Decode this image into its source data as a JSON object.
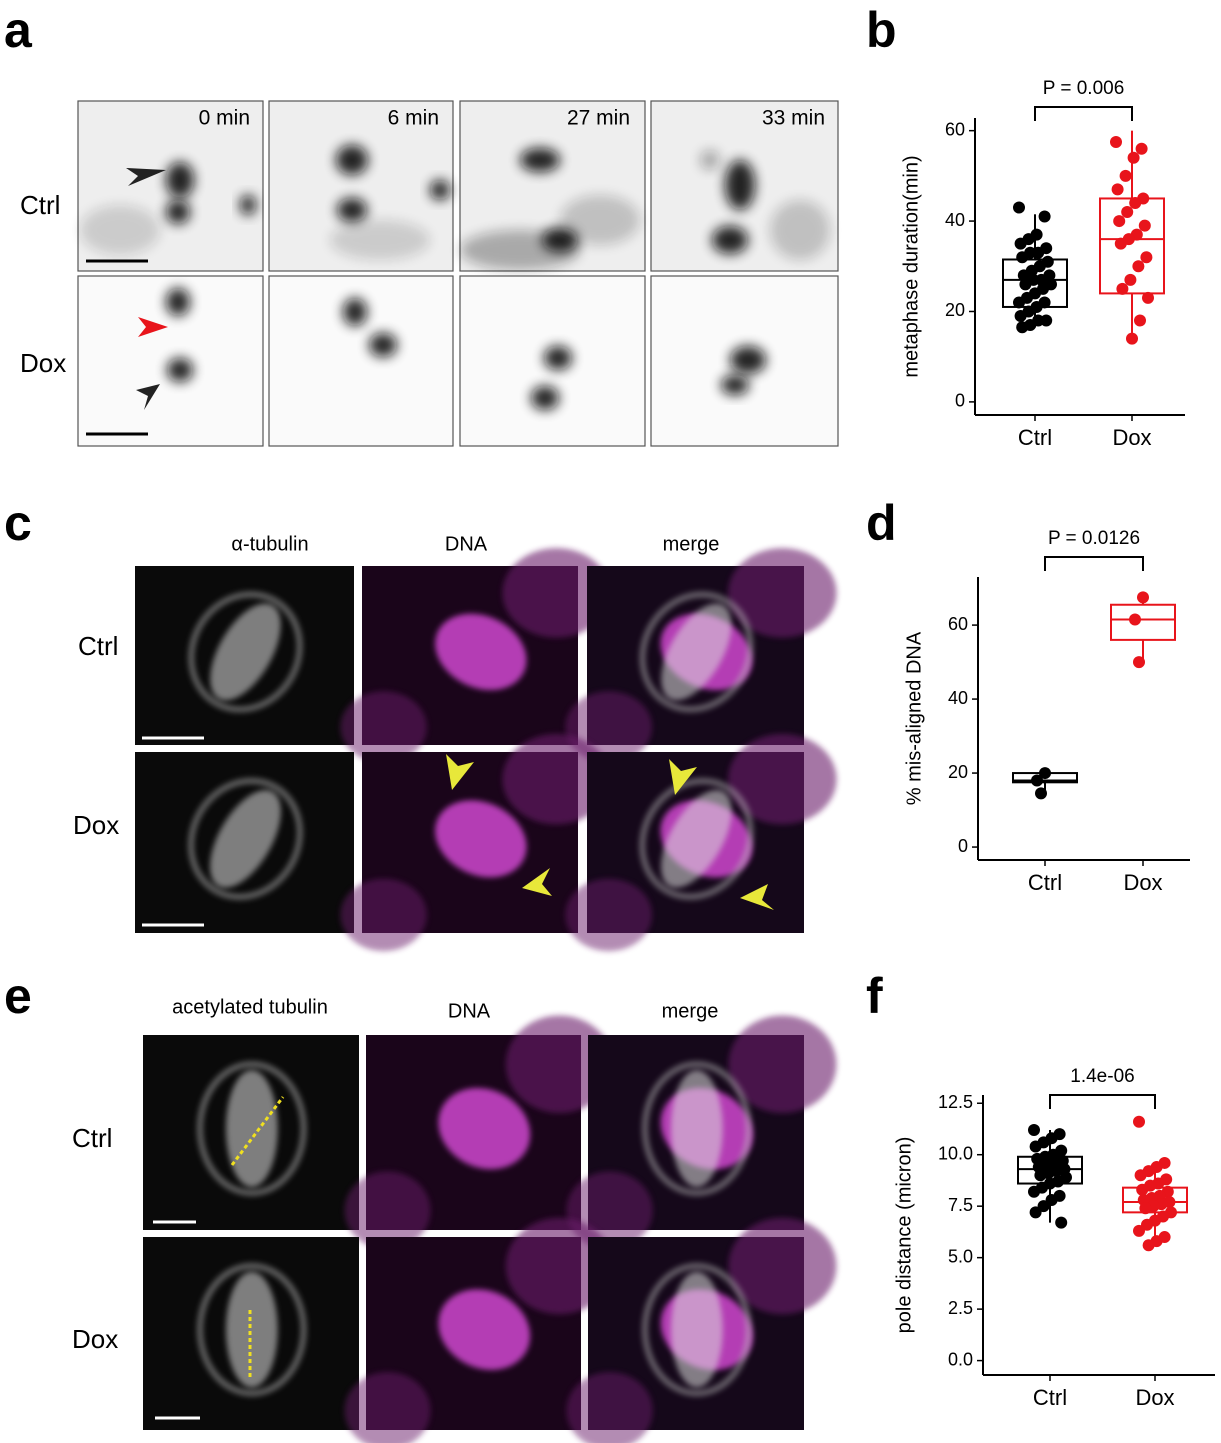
{
  "figure": {
    "panel_labels": [
      "a",
      "b",
      "c",
      "d",
      "e",
      "f"
    ],
    "panel_a": {
      "times": [
        "0 min",
        "6 min",
        "27 min",
        "33 min"
      ],
      "rows": [
        "Ctrl",
        "Dox"
      ]
    },
    "panel_c": {
      "columns": [
        "α-tubulin",
        "DNA",
        "merge"
      ],
      "rows": [
        "Ctrl",
        "Dox"
      ]
    },
    "panel_e": {
      "columns": [
        "acetylated tubulin",
        "DNA",
        "merge"
      ],
      "rows": [
        "Ctrl",
        "Dox"
      ]
    }
  },
  "chart_data": [
    {
      "type": "box",
      "ylabel": "metaphase duration(min)",
      "annotation": "P = 0.006",
      "categories": [
        "Ctrl",
        "Dox"
      ],
      "ylim": [
        -2.9,
        62.8
      ],
      "yticks": [
        0,
        20,
        40,
        60
      ],
      "boxes": [
        {
          "color": "#000000",
          "whisker_low": 16.5,
          "q1": 21,
          "median": 27,
          "q3": 31.5,
          "whisker_high": 41.5,
          "points": [
            43,
            41,
            37,
            36,
            35,
            34,
            33,
            33,
            32,
            31,
            30,
            29,
            28,
            28,
            27,
            27,
            26,
            26,
            25,
            24,
            23,
            22,
            22,
            21,
            20,
            19,
            18,
            18,
            17,
            16.5
          ]
        },
        {
          "color": "#e8141b",
          "whisker_low": 14,
          "q1": 24,
          "median": 36,
          "q3": 45,
          "whisker_high": 60,
          "points": [
            57.5,
            56,
            54,
            50,
            47,
            45,
            44,
            42,
            40,
            39,
            37,
            36,
            35,
            32,
            30,
            27,
            25,
            23,
            18,
            14
          ]
        }
      ]
    },
    {
      "type": "box",
      "ylabel": "% mis-aligned DNA",
      "annotation": "P = 0.0126",
      "categories": [
        "Ctrl",
        "Dox"
      ],
      "ylim": [
        -3.5,
        73
      ],
      "yticks": [
        0,
        20,
        40,
        60
      ],
      "boxes": [
        {
          "color": "#000000",
          "whisker_low": 14.5,
          "q1": 17.5,
          "median": 18,
          "q3": 20,
          "whisker_high": 20,
          "points": [
            20,
            18,
            14.5
          ]
        },
        {
          "color": "#e8141b",
          "whisker_low": 50,
          "q1": 56,
          "median": 61.5,
          "q3": 65.5,
          "whisker_high": 67.5,
          "points": [
            67.5,
            61.5,
            50
          ]
        }
      ]
    },
    {
      "type": "box",
      "ylabel": "pole distance (micron)",
      "annotation": "1.4e-06",
      "categories": [
        "Ctrl",
        "Dox"
      ],
      "ylim": [
        -0.7,
        12.9
      ],
      "yticks": [
        {
          "value": 0,
          "label": "0.0"
        },
        2.5,
        {
          "value": 5,
          "label": "5.0"
        },
        7.5,
        {
          "value": 10,
          "label": "10.0"
        },
        12.5
      ],
      "boxes": [
        {
          "color": "#000000",
          "whisker_low": 6.7,
          "q1": 8.6,
          "median": 9.3,
          "q3": 9.9,
          "whisker_high": 11.2,
          "points": [
            11.2,
            11.0,
            10.8,
            10.6,
            10.4,
            10.2,
            10.0,
            9.9,
            9.8,
            9.7,
            9.6,
            9.5,
            9.4,
            9.3,
            9.2,
            9.1,
            9.0,
            8.9,
            8.7,
            8.6,
            8.4,
            8.2,
            8.0,
            7.8,
            7.5,
            7.2,
            6.7
          ]
        },
        {
          "color": "#e8141b",
          "whisker_low": 5.6,
          "q1": 7.2,
          "median": 7.7,
          "q3": 8.4,
          "whisker_high": 9.6,
          "points": [
            11.6,
            9.6,
            9.4,
            9.2,
            9.0,
            8.8,
            8.6,
            8.5,
            8.3,
            8.2,
            8.0,
            7.9,
            7.8,
            7.7,
            7.6,
            7.5,
            7.4,
            7.2,
            7.0,
            6.8,
            6.6,
            6.3,
            6.0,
            5.8,
            5.6
          ]
        }
      ]
    }
  ]
}
